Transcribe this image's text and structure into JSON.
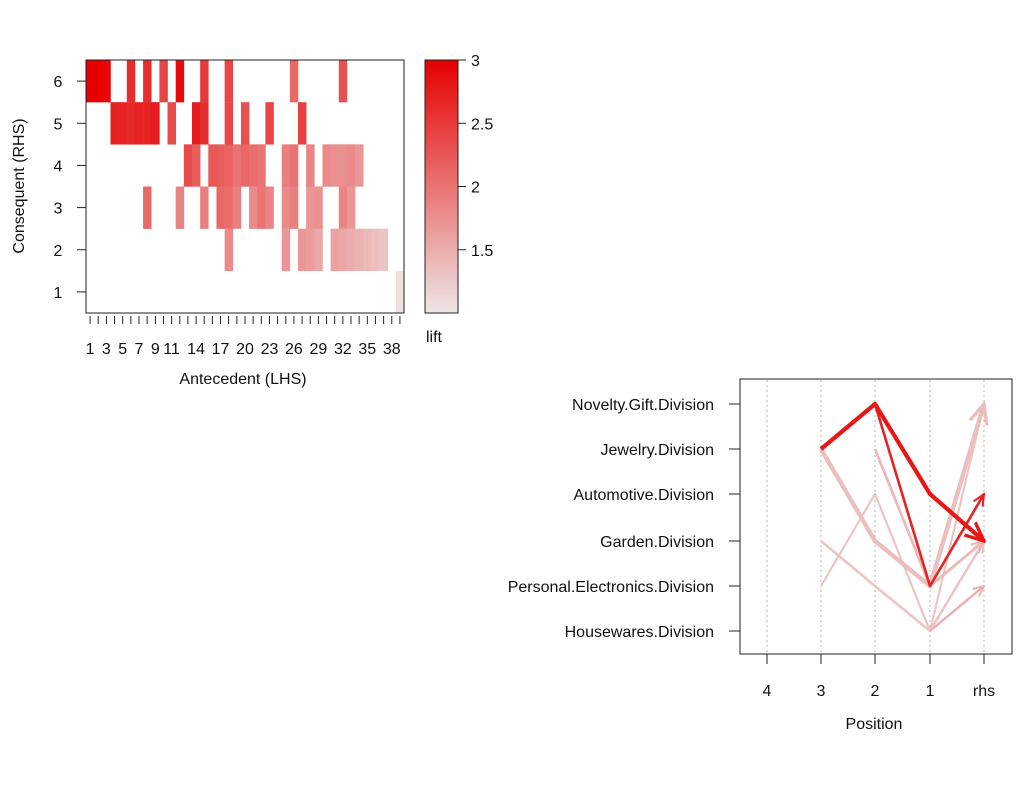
{
  "chart_data": [
    {
      "type": "heatmap",
      "xlabel": "Antecedent (LHS)",
      "ylabel": "Consequent (RHS)",
      "x_count": 39,
      "x_tick_labels": [
        "1",
        "3",
        "5",
        "7",
        "9",
        "11",
        "14",
        "17",
        "20",
        "23",
        "26",
        "29",
        "32",
        "35",
        "38"
      ],
      "x_tick_values": [
        1,
        3,
        5,
        7,
        9,
        11,
        14,
        17,
        20,
        23,
        26,
        29,
        32,
        35,
        38
      ],
      "y_tick_labels": [
        "1",
        "2",
        "3",
        "4",
        "5",
        "6"
      ],
      "y_tick_values": [
        1,
        2,
        3,
        4,
        5,
        6
      ],
      "legend_title": "lift",
      "legend_ticks": [
        {
          "value": 3,
          "label": "3"
        },
        {
          "value": 2.5,
          "label": "2.5"
        },
        {
          "value": 2,
          "label": "2"
        },
        {
          "value": 1.5,
          "label": "1.5"
        }
      ],
      "color_range": [
        1.0,
        3.0
      ],
      "color_low": "#ede6e6",
      "color_high": "#e60000",
      "cells": [
        [
          1,
          6,
          3.0
        ],
        [
          2,
          6,
          3.0
        ],
        [
          3,
          6,
          2.95
        ],
        [
          6,
          6,
          2.6
        ],
        [
          8,
          6,
          2.6
        ],
        [
          10,
          6,
          2.4
        ],
        [
          12,
          6,
          2.9
        ],
        [
          15,
          6,
          2.5
        ],
        [
          18,
          6,
          2.4
        ],
        [
          26,
          6,
          2.1
        ],
        [
          32,
          6,
          2.3
        ],
        [
          4,
          5,
          2.7
        ],
        [
          5,
          5,
          2.7
        ],
        [
          6,
          5,
          2.65
        ],
        [
          7,
          5,
          2.7
        ],
        [
          8,
          5,
          2.7
        ],
        [
          9,
          5,
          2.75
        ],
        [
          11,
          5,
          2.35
        ],
        [
          14,
          5,
          2.75
        ],
        [
          15,
          5,
          2.6
        ],
        [
          18,
          5,
          2.4
        ],
        [
          20,
          5,
          2.3
        ],
        [
          23,
          5,
          2.4
        ],
        [
          27,
          5,
          2.45
        ],
        [
          13,
          4,
          2.35
        ],
        [
          14,
          4,
          2.2
        ],
        [
          16,
          4,
          2.25
        ],
        [
          17,
          4,
          2.2
        ],
        [
          18,
          4,
          2.15
        ],
        [
          19,
          4,
          2.0
        ],
        [
          20,
          4,
          2.1
        ],
        [
          21,
          4,
          2.05
        ],
        [
          22,
          4,
          2.0
        ],
        [
          25,
          4,
          1.9
        ],
        [
          26,
          4,
          2.0
        ],
        [
          28,
          4,
          1.85
        ],
        [
          30,
          4,
          1.8
        ],
        [
          31,
          4,
          1.75
        ],
        [
          32,
          4,
          1.75
        ],
        [
          33,
          4,
          1.8
        ],
        [
          34,
          4,
          1.7
        ],
        [
          8,
          3,
          2.1
        ],
        [
          12,
          3,
          1.85
        ],
        [
          15,
          3,
          1.9
        ],
        [
          17,
          3,
          2.1
        ],
        [
          18,
          3,
          2.05
        ],
        [
          19,
          3,
          1.9
        ],
        [
          21,
          3,
          1.8
        ],
        [
          22,
          3,
          2.0
        ],
        [
          23,
          3,
          1.85
        ],
        [
          25,
          3,
          1.8
        ],
        [
          26,
          3,
          1.9
        ],
        [
          28,
          3,
          1.7
        ],
        [
          29,
          3,
          1.75
        ],
        [
          32,
          3,
          1.85
        ],
        [
          33,
          3,
          1.7
        ],
        [
          18,
          2,
          1.8
        ],
        [
          25,
          2,
          1.7
        ],
        [
          27,
          2,
          1.7
        ],
        [
          28,
          2,
          1.65
        ],
        [
          29,
          2,
          1.55
        ],
        [
          31,
          2,
          1.6
        ],
        [
          32,
          2,
          1.55
        ],
        [
          33,
          2,
          1.5
        ],
        [
          34,
          2,
          1.45
        ],
        [
          35,
          2,
          1.4
        ],
        [
          36,
          2,
          1.35
        ],
        [
          37,
          2,
          1.3
        ],
        [
          39,
          1,
          1.05
        ]
      ]
    },
    {
      "type": "line",
      "xlabel": "Position",
      "x_categories": [
        "4",
        "3",
        "2",
        "1",
        "rhs"
      ],
      "y_categories": [
        "Housewares.Division",
        "Personal.Electronics.Division",
        "Garden.Division",
        "Automotive.Division",
        "Jewelry.Division",
        "Novelty.Gift.Division"
      ],
      "lift_range": [
        1.0,
        3.0
      ],
      "rules": [
        {
          "path": [
            "Housewares.Division",
            "Personal.Electronics.Division"
          ],
          "lift": 1.5,
          "support": 0.35
        },
        {
          "path": [
            "Personal.Electronics.Division",
            "Automotive.Division",
            "Housewares.Division",
            "Novelty.Gift.Division"
          ],
          "lift": 1.3,
          "support": 0.3
        },
        {
          "path": [
            "Jewelry.Division",
            "Personal.Electronics.Division",
            "Garden.Division"
          ],
          "lift": 1.4,
          "support": 0.45
        },
        {
          "path": [
            "Jewelry.Division",
            "Garden.Division",
            "Personal.Electronics.Division",
            "Novelty.Gift.Division"
          ],
          "lift": 1.35,
          "support": 0.85
        },
        {
          "path": [
            "Garden.Division",
            "Personal.Electronics.Division",
            "Housewares.Division",
            "Garden.Division"
          ],
          "lift": 1.3,
          "support": 0.4
        },
        {
          "path": [
            "Jewelry.Division",
            "Novelty.Gift.Division",
            "Personal.Electronics.Division",
            "Automotive.Division"
          ],
          "lift": 2.7,
          "support": 0.4
        },
        {
          "path": [
            "Jewelry.Division",
            "Novelty.Gift.Division",
            "Automotive.Division",
            "Garden.Division"
          ],
          "lift": 2.8,
          "support": 0.8
        }
      ]
    }
  ]
}
